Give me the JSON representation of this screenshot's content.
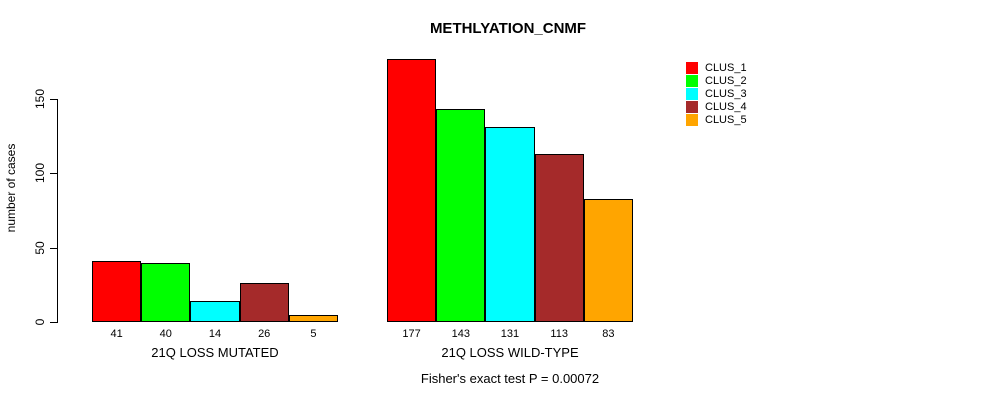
{
  "title": "METHLYATION_CNMF",
  "subtitle": "Fisher's exact test P = 0.00072",
  "y_axis": {
    "label": "number of cases"
  },
  "chart_data": {
    "type": "bar",
    "title": "METHLYATION_CNMF",
    "xlabel": "",
    "ylabel": "number of cases",
    "ylim": [
      0,
      177
    ],
    "yticks": [
      0,
      50,
      100,
      150
    ],
    "grid": false,
    "legend_position": "top-right",
    "series": [
      {
        "name": "CLUS_1",
        "color": "#FF0000"
      },
      {
        "name": "CLUS_2",
        "color": "#00FF00"
      },
      {
        "name": "CLUS_3",
        "color": "#00FFFF"
      },
      {
        "name": "CLUS_4",
        "color": "#A52A2A"
      },
      {
        "name": "CLUS_5",
        "color": "#FFA500"
      }
    ],
    "groups": [
      {
        "label": "21Q LOSS MUTATED",
        "values": [
          41,
          40,
          14,
          26,
          5
        ]
      },
      {
        "label": "21Q LOSS WILD-TYPE",
        "values": [
          177,
          143,
          131,
          113,
          83
        ]
      }
    ],
    "annotation": "Fisher's exact test P = 0.00072"
  }
}
